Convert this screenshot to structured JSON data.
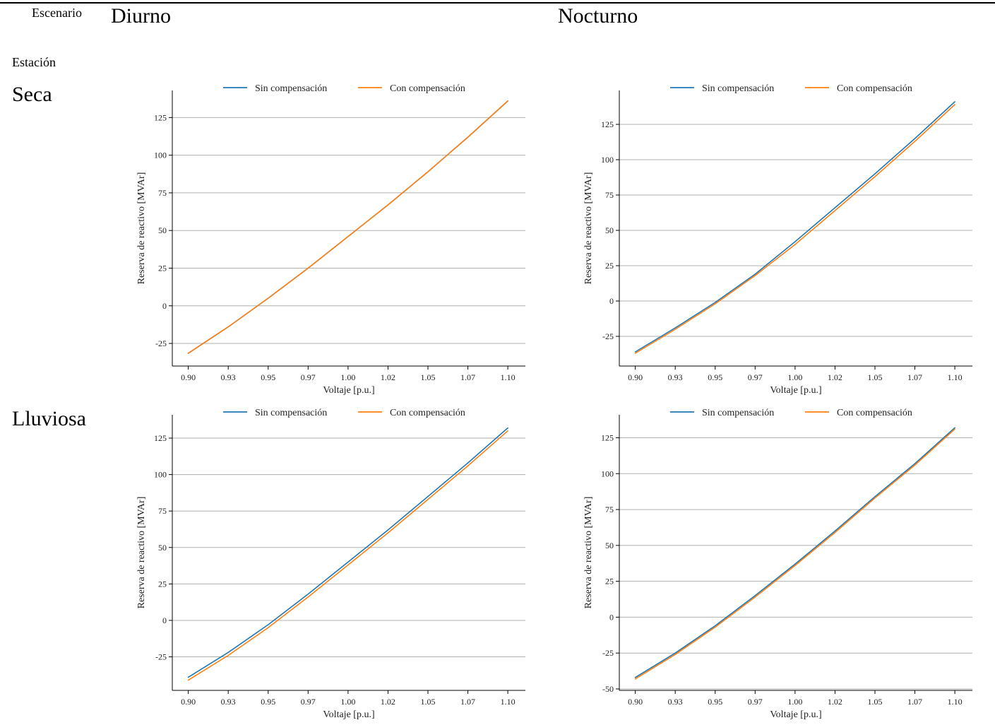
{
  "header": {
    "scenario_label": "Escenario",
    "station_label": "Estación",
    "col_day": "Diurno",
    "col_night": "Nocturno",
    "row_dry": "Seca",
    "row_rainy": "Lluviosa"
  },
  "colors": {
    "sin": "#1f77b4",
    "con": "#ff7f0e",
    "grid": "#b0b0b0"
  },
  "chart_data": [
    {
      "type": "line",
      "id": "seca-diurno",
      "xlabel": "Voltaje [p.u.]",
      "ylabel": "Reserva de reactivo [MVAr]",
      "xlim": [
        0.89,
        1.111
      ],
      "ylim": [
        -40,
        143
      ],
      "xticks": [
        0.9,
        0.925,
        0.95,
        0.975,
        1.0,
        1.025,
        1.05,
        1.075,
        1.1
      ],
      "xtick_labels": [
        "0.90",
        "0.93",
        "0.95",
        "0.97",
        "1.00",
        "1.02",
        "1.05",
        "1.07",
        "1.10"
      ],
      "yticks": [
        -25,
        0,
        25,
        50,
        75,
        100,
        125
      ],
      "ytick_labels": [
        "-25",
        "0",
        "25",
        "50",
        "75",
        "100",
        "125"
      ],
      "legend": "top",
      "grid": "horizontal",
      "x": [
        0.9,
        0.925,
        0.95,
        0.975,
        1.0,
        1.025,
        1.05,
        1.075,
        1.1
      ],
      "series": [
        {
          "name": "Sin compensación",
          "values": [
            -31.5,
            -14,
            5,
            25,
            46,
            67,
            89,
            112,
            136
          ]
        },
        {
          "name": "Con compensación",
          "values": [
            -31.5,
            -14,
            5,
            25,
            46,
            67,
            89,
            112,
            136
          ]
        }
      ]
    },
    {
      "type": "line",
      "id": "seca-nocturno",
      "xlabel": "Voltaje [p.u.]",
      "ylabel": "Reserva de reactivo [MVAr]",
      "xlim": [
        0.89,
        1.111
      ],
      "ylim": [
        -46,
        149
      ],
      "xticks": [
        0.9,
        0.925,
        0.95,
        0.975,
        1.0,
        1.025,
        1.05,
        1.075,
        1.1
      ],
      "xtick_labels": [
        "0.90",
        "0.93",
        "0.95",
        "0.97",
        "1.00",
        "1.02",
        "1.05",
        "1.07",
        "1.10"
      ],
      "yticks": [
        -25,
        0,
        25,
        50,
        75,
        100,
        125
      ],
      "ytick_labels": [
        "-25",
        "0",
        "25",
        "50",
        "75",
        "100",
        "125"
      ],
      "legend": "top",
      "grid": "horizontal",
      "x": [
        0.9,
        0.925,
        0.95,
        0.975,
        1.0,
        1.025,
        1.05,
        1.075,
        1.1
      ],
      "series": [
        {
          "name": "Sin compensación",
          "values": [
            -36,
            -19,
            -1,
            19,
            42,
            66,
            90,
            115,
            141
          ]
        },
        {
          "name": "Con compensación",
          "values": [
            -37,
            -20,
            -2,
            18,
            40,
            64,
            88,
            113,
            139
          ]
        }
      ]
    },
    {
      "type": "line",
      "id": "lluviosa-diurno",
      "xlabel": "Voltaje [p.u.]",
      "ylabel": "Reserva de reactivo [MVAr]",
      "xlim": [
        0.89,
        1.111
      ],
      "ylim": [
        -48,
        141
      ],
      "xticks": [
        0.9,
        0.925,
        0.95,
        0.975,
        1.0,
        1.025,
        1.05,
        1.075,
        1.1
      ],
      "xtick_labels": [
        "0.90",
        "0.93",
        "0.95",
        "0.97",
        "1.00",
        "1.02",
        "1.05",
        "1.07",
        "1.10"
      ],
      "yticks": [
        -25,
        0,
        25,
        50,
        75,
        100,
        125
      ],
      "ytick_labels": [
        "-25",
        "0",
        "25",
        "50",
        "75",
        "100",
        "125"
      ],
      "legend": "top",
      "grid": "horizontal",
      "x": [
        0.9,
        0.925,
        0.95,
        0.975,
        1.0,
        1.025,
        1.05,
        1.075,
        1.1
      ],
      "series": [
        {
          "name": "Sin compensación",
          "values": [
            -39,
            -22,
            -3,
            18,
            40,
            62,
            85,
            108,
            132
          ]
        },
        {
          "name": "Con compensación",
          "values": [
            -41,
            -24,
            -5,
            16,
            38,
            60,
            83,
            106,
            130
          ]
        }
      ]
    },
    {
      "type": "line",
      "id": "lluviosa-nocturno",
      "xlabel": "Voltaje [p.u.]",
      "ylabel": "Reserva de reactivo [MVAr]",
      "xlim": [
        0.89,
        1.111
      ],
      "ylim": [
        -51,
        141
      ],
      "xticks": [
        0.9,
        0.925,
        0.95,
        0.975,
        1.0,
        1.025,
        1.05,
        1.075,
        1.1
      ],
      "xtick_labels": [
        "0.90",
        "0.93",
        "0.95",
        "0.97",
        "1.00",
        "1.02",
        "1.05",
        "1.07",
        "1.10"
      ],
      "yticks": [
        -50,
        -25,
        0,
        25,
        50,
        75,
        100,
        125
      ],
      "ytick_labels": [
        "-50",
        "-25",
        "0",
        "25",
        "50",
        "75",
        "100",
        "125"
      ],
      "legend": "top",
      "grid": "horizontal",
      "x": [
        0.9,
        0.925,
        0.95,
        0.975,
        1.0,
        1.025,
        1.05,
        1.075,
        1.1
      ],
      "series": [
        {
          "name": "Sin compensación",
          "values": [
            -42,
            -25,
            -6,
            15,
            37,
            60,
            84,
            107,
            132
          ]
        },
        {
          "name": "Con compensación",
          "values": [
            -43,
            -26,
            -7,
            14,
            36,
            59,
            83,
            106,
            131
          ]
        }
      ]
    }
  ]
}
